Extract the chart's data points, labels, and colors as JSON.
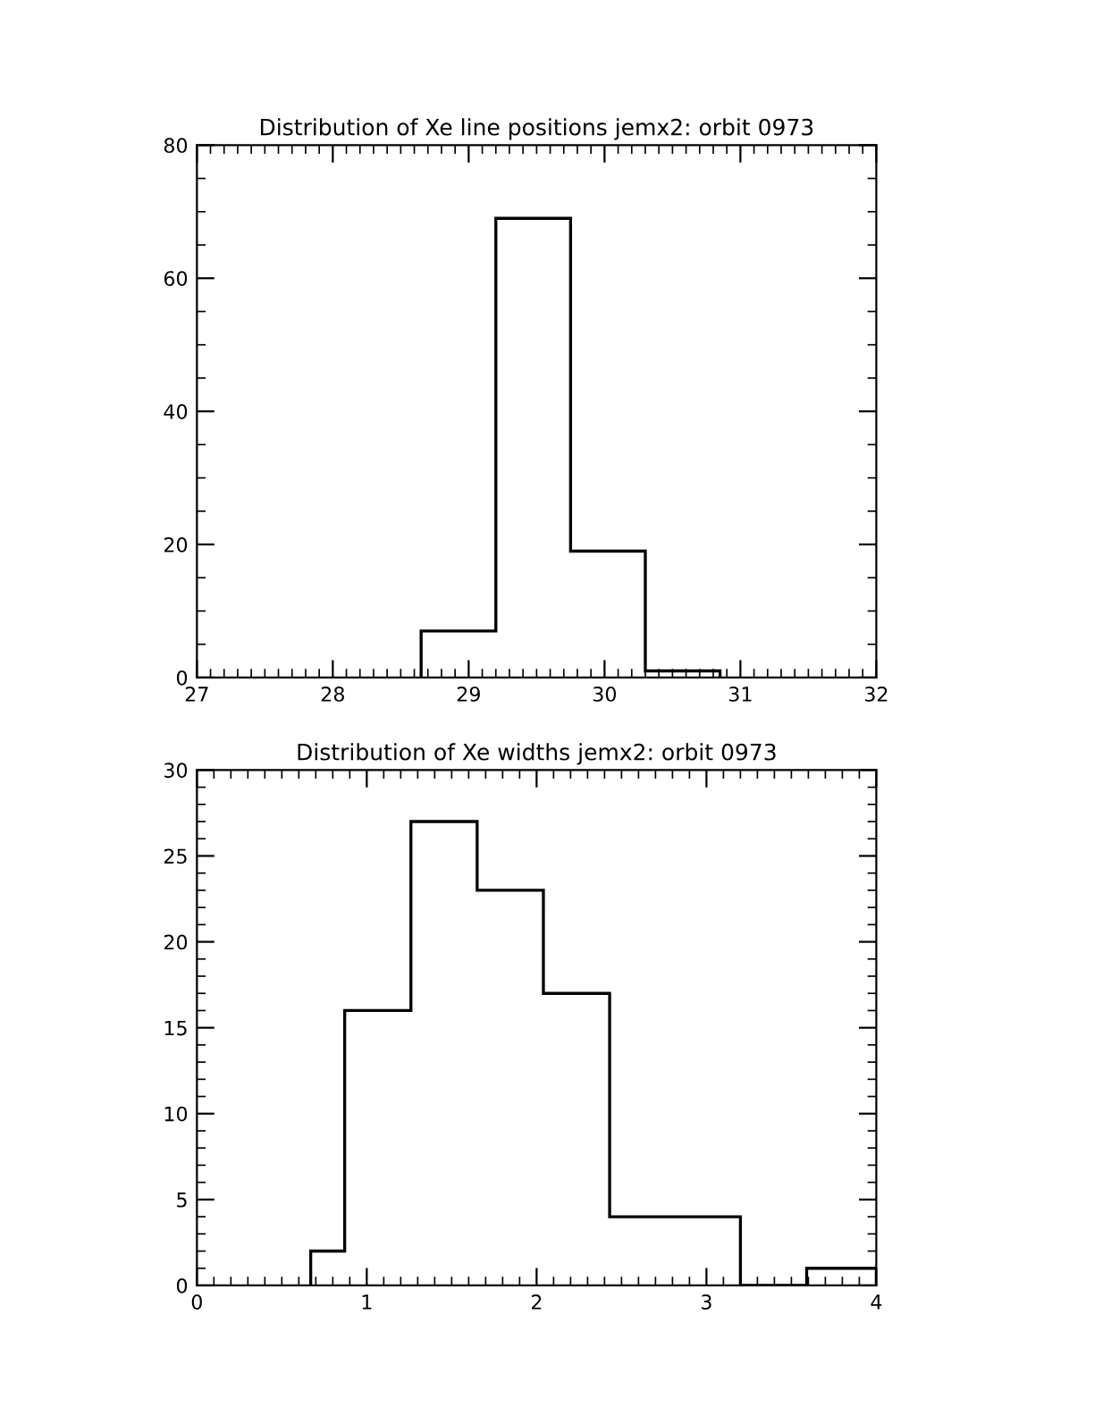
{
  "chart_data": [
    {
      "type": "histogram",
      "title": "Distribution of Xe line positions jemx2: orbit 0973",
      "bins": [
        28.65,
        29.2,
        29.75,
        30.3,
        30.85
      ],
      "values": [
        7,
        69,
        19,
        1
      ],
      "color": "#000000",
      "xlim": [
        27,
        32
      ],
      "xticks": [
        27,
        28,
        29,
        30,
        31,
        32
      ],
      "ylim": [
        0,
        80
      ],
      "yticks": [
        0,
        20,
        40,
        60,
        80
      ],
      "grid": false,
      "legend": false
    },
    {
      "type": "histogram",
      "title": "Distribution of Xe widths jemx2: orbit 0973",
      "bins": [
        0.67,
        0.87,
        1.26,
        1.65,
        2.04,
        2.43,
        2.82,
        3.2,
        3.59,
        4.0
      ],
      "values": [
        2,
        16,
        27,
        23,
        17,
        4,
        4,
        0,
        1
      ],
      "color": "#000000",
      "xlim": [
        0,
        4
      ],
      "xticks": [
        0,
        1,
        2,
        3,
        4
      ],
      "ylim": [
        0,
        30
      ],
      "yticks": [
        0,
        5,
        10,
        15,
        20,
        25,
        30
      ],
      "grid": false,
      "legend": false
    }
  ]
}
